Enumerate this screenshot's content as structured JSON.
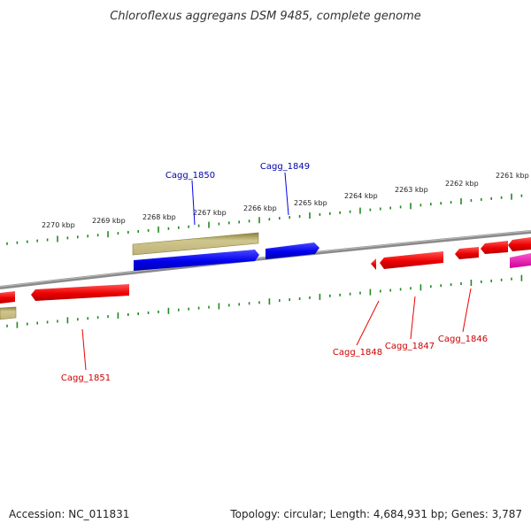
{
  "title": "Chloroflexus aggregans DSM 9485, complete genome",
  "footer": {
    "accession": "Accession: NC_011831",
    "stats": "Topology: circular; Length: 4,684,931 bp; Genes: 3,787"
  },
  "colors": {
    "tick": "#1f8a1f",
    "backbone": "#8a8a8a",
    "forward_gene": "#0000ee",
    "reverse_gene": "#ee0000",
    "olive_feature": "#bdb37a",
    "magenta_feature": "#ee00aa",
    "forward_label": "#0000aa",
    "reverse_label": "#cc0000"
  },
  "scale": {
    "units": "kbp",
    "labels": [
      "2270 kbp",
      "2269 kbp",
      "2268 kbp",
      "2267 kbp",
      "2266 kbp",
      "2265 kbp",
      "2264 kbp",
      "2263 kbp",
      "2262 kbp",
      "2261 kbp"
    ]
  },
  "gene_labels": {
    "forward": [
      "Cagg_1850",
      "Cagg_1849"
    ],
    "reverse": [
      "Cagg_1851",
      "Cagg_1848",
      "Cagg_1847",
      "Cagg_1846"
    ]
  }
}
